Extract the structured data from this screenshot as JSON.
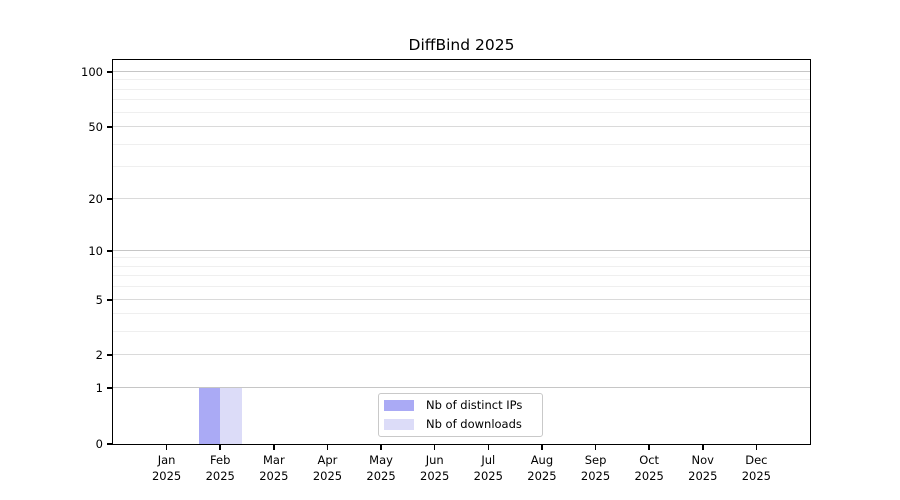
{
  "chart_data": {
    "type": "bar",
    "title": "DiffBind 2025",
    "x_categories": [
      "Jan",
      "Feb",
      "Mar",
      "Apr",
      "May",
      "Jun",
      "Jul",
      "Aug",
      "Sep",
      "Oct",
      "Nov",
      "Dec"
    ],
    "x_year": "2025",
    "series": [
      {
        "name": "Nb of distinct IPs",
        "color": "#aaaaf5",
        "values": [
          0,
          1,
          0,
          0,
          0,
          0,
          0,
          0,
          0,
          0,
          0,
          0
        ]
      },
      {
        "name": "Nb of downloads",
        "color": "#dcdcf8",
        "values": [
          0,
          1,
          0,
          0,
          0,
          0,
          0,
          0,
          0,
          0,
          0,
          0
        ]
      }
    ],
    "y_major_ticks": [
      0,
      1,
      2,
      5,
      10,
      20,
      50,
      100
    ],
    "y_minor_gridlines": [
      3,
      4,
      6,
      7,
      8,
      9,
      30,
      40,
      60,
      70,
      80,
      90
    ],
    "y_scale": "log10(value+1)",
    "ymax": 116,
    "grid": "horizontal major+minor",
    "legend_position": "lower center inside",
    "colors": {
      "grid_decade": "#c6c6c6",
      "grid_major": "#dadada",
      "grid_minor": "#efefef",
      "spine": "#000000",
      "legend_border": "#c9c9c9",
      "text": "#000000"
    }
  }
}
